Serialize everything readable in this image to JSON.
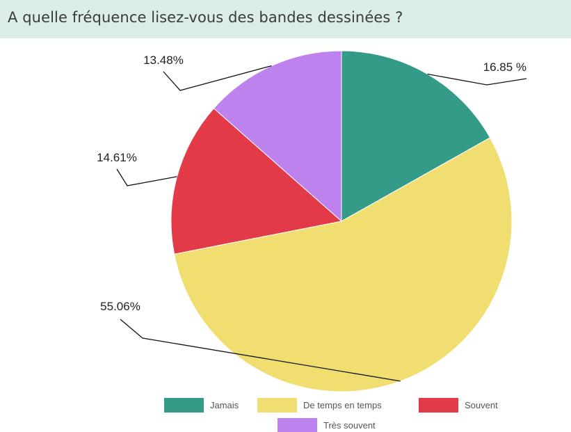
{
  "title": "A quelle fréquence lisez-vous des bandes dessinées ?",
  "chart_data": {
    "type": "pie",
    "title": "A quelle fréquence lisez-vous des bandes dessinées ?",
    "legend_position": "bottom",
    "slices": [
      {
        "label": "Jamais",
        "value": 16.85,
        "display": "16.85 %",
        "color": "#339b87"
      },
      {
        "label": "De temps en temps",
        "value": 55.06,
        "display": "55.06%",
        "color": "#f0de70"
      },
      {
        "label": "Souvent",
        "value": 14.61,
        "display": "14.61%",
        "color": "#e33a48"
      },
      {
        "label": "Très souvent",
        "value": 13.48,
        "display": "13.48%",
        "color": "#bd82ed"
      }
    ]
  }
}
